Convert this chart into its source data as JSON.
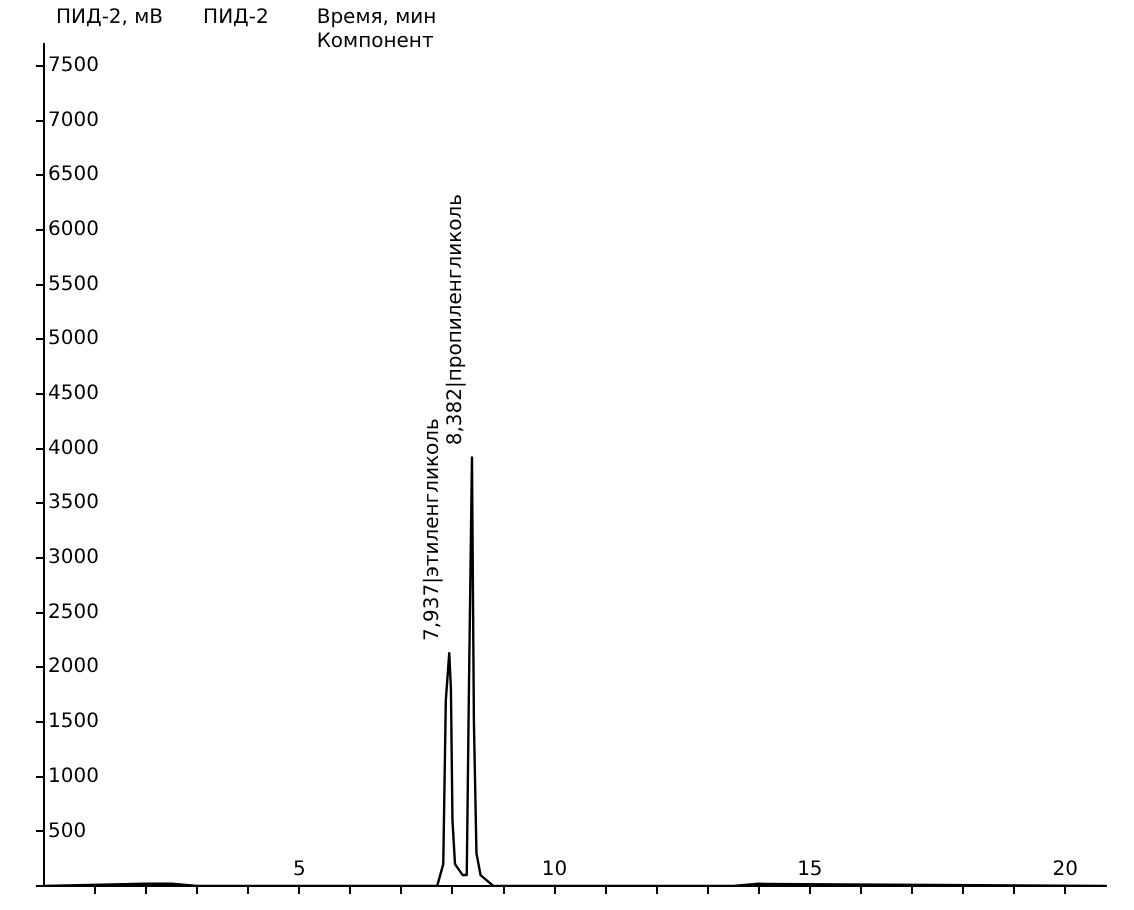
{
  "chart_data": {
    "type": "line",
    "ylabel": "ПИД-2, мВ",
    "xlabel": "Время, мин",
    "legend": "top left",
    "marker": "none",
    "grid": false,
    "annotations": [
      "Компонент",
      {
        "text": "7,937|этиленгликоль",
        "x": 7.937,
        "y": 2130
      },
      {
        "text": "8,382|пропиленгликоль",
        "x": 8.382,
        "y": 3920
      }
    ],
    "xlim": [
      0,
      20.8
    ],
    "ylim": [
      0,
      7700
    ],
    "xticks": [
      {
        "value": 1,
        "label": null
      },
      {
        "value": 2,
        "label": null
      },
      {
        "value": 3,
        "label": null
      },
      {
        "value": 4,
        "label": null
      },
      5,
      {
        "value": 6,
        "label": null
      },
      {
        "value": 7,
        "label": null
      },
      {
        "value": 8,
        "label": null
      },
      {
        "value": 9,
        "label": null
      },
      10,
      {
        "value": 11,
        "label": null
      },
      {
        "value": 12,
        "label": null
      },
      {
        "value": 13,
        "label": null
      },
      {
        "value": 14,
        "label": null
      },
      15,
      {
        "value": 16,
        "label": null
      },
      {
        "value": 17,
        "label": null
      },
      {
        "value": 18,
        "label": null
      },
      {
        "value": 19,
        "label": null
      },
      20
    ],
    "yticks": [
      {
        "value": 0,
        "label": null
      },
      500,
      1000,
      1500,
      2000,
      2500,
      3000,
      3500,
      4000,
      4500,
      5000,
      5500,
      6000,
      6500,
      7000,
      7500
    ],
    "series": [
      {
        "name": "ПИД-2",
        "color": "#000000",
        "x": [
          0,
          2,
          2.5,
          3,
          7.7,
          7.82,
          7.87,
          7.937,
          7.97,
          8.0,
          8.05,
          8.2,
          8.28,
          8.32,
          8.382,
          8.42,
          8.47,
          8.55,
          8.8,
          9,
          13.5,
          14,
          20.8
        ],
        "values": [
          0,
          20,
          20,
          0,
          0,
          200,
          1700,
          2130,
          1800,
          600,
          200,
          100,
          100,
          1700,
          3920,
          1500,
          300,
          100,
          0,
          0,
          0,
          20,
          0
        ]
      }
    ]
  }
}
